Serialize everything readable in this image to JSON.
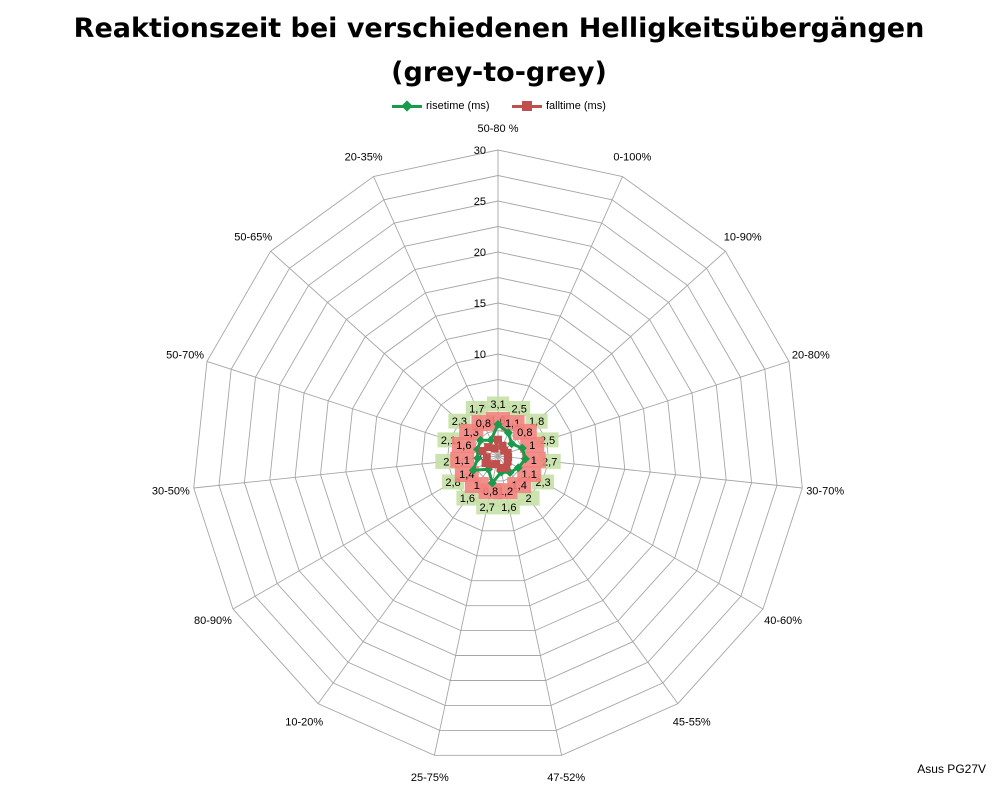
{
  "title_line1": "Reaktionszeit bei verschiedenen Helligkeitsübergängen",
  "title_line2": "(grey-to-grey)",
  "credit": "Asus PG27V",
  "chart_data": {
    "type": "radar",
    "categories": [
      "50-80 %",
      "0-100%",
      "10-90%",
      "20-80%",
      "30-70%",
      "40-60%",
      "45-55%",
      "47-52%",
      "25-75%",
      "10-20%",
      "80-90%",
      "30-50%",
      "50-70%",
      "50-65%",
      "20-35%"
    ],
    "radial_range": [
      0,
      30
    ],
    "radial_ticks": [
      0,
      5,
      10,
      15,
      20,
      25,
      30
    ],
    "grid": true,
    "legend_position": "top",
    "series": [
      {
        "name": "risetime (ms)",
        "color": "#1a9a4a",
        "label_bg": "#c5e0a5",
        "values": [
          3.1,
          2.5,
          1.8,
          2.5,
          2.7,
          2.3,
          2,
          1.6,
          2.7,
          1.6,
          2.8,
          2,
          2.1,
          2.3,
          1.7
        ],
        "labels": [
          "3,1",
          "2,5",
          "1,8",
          "2,5",
          "2,7",
          "2,3",
          "2",
          "1,6",
          "2,7",
          "1,6",
          "2,8",
          "2",
          "2,1",
          "2,3",
          "1,7"
        ]
      },
      {
        "name": "falltime (ms)",
        "color": "#c0504d",
        "label_bg": "#f2837d",
        "values": [
          1.6,
          1.1,
          0.8,
          1,
          1,
          1.1,
          1.4,
          1.2,
          0.8,
          1,
          1.4,
          1.1,
          1.6,
          1.3,
          0.8
        ],
        "labels": [
          "1,6",
          "1,1",
          "0,8",
          "1",
          "1",
          "1,1",
          "1,4",
          "1,2",
          "0,8",
          "1",
          "1,4",
          "1,1",
          "1,6",
          "1,3",
          "0,8"
        ]
      }
    ]
  }
}
